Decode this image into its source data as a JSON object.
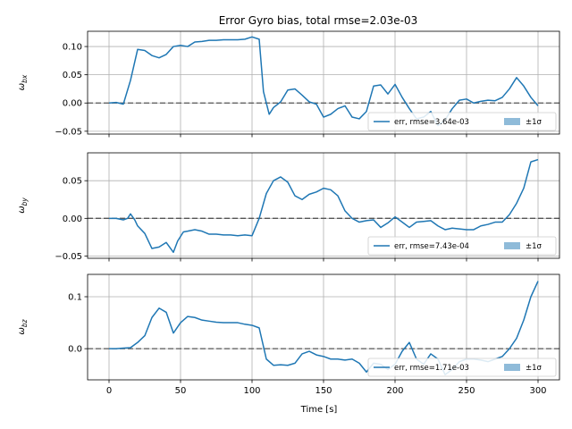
{
  "chart_data": {
    "type": "line",
    "title": "Error Gyro bias, total rmse=2.03e-03",
    "xlabel": "Time [s]",
    "xlim": [
      -15,
      315
    ],
    "xticks": [
      0,
      50,
      100,
      150,
      200,
      250,
      300
    ],
    "xtick_labels": [
      "0",
      "50",
      "100",
      "150",
      "200",
      "250",
      "300"
    ],
    "grid": true,
    "legend_placement": "lower right",
    "zero_reference": "dashed horizontal line at 0",
    "colors": {
      "series": "#1f77b4",
      "band": "#1f77b4",
      "zero_line": "#555555",
      "grid": "#b0b0b0"
    },
    "panels": [
      {
        "ylabel_base": "ω",
        "ylabel_sub": "bx",
        "ylim": [
          -0.055,
          0.127
        ],
        "yticks": [
          -0.05,
          0.0,
          0.05,
          0.1
        ],
        "ytick_labels": [
          "−0.05",
          "0.00",
          "0.05",
          "0.10"
        ],
        "legend": {
          "series_label": "err, rmse=3.64e-03",
          "band_label": "±1σ"
        },
        "series": [
          {
            "name": "err, rmse=3.64e-03",
            "x": [
              0,
              5,
              10,
              15,
              20,
              25,
              30,
              35,
              40,
              45,
              50,
              55,
              60,
              65,
              70,
              75,
              80,
              85,
              90,
              95,
              100,
              105,
              108,
              112,
              115,
              120,
              125,
              130,
              135,
              140,
              145,
              150,
              155,
              160,
              165,
              170,
              175,
              180,
              185,
              190,
              195,
              200,
              205,
              210,
              215,
              220,
              225,
              230,
              235,
              240,
              245,
              250,
              255,
              260,
              265,
              270,
              275,
              280,
              285,
              290,
              295,
              300
            ],
            "y": [
              0.0,
              0.001,
              -0.002,
              0.04,
              0.095,
              0.093,
              0.084,
              0.08,
              0.086,
              0.1,
              0.102,
              0.1,
              0.108,
              0.109,
              0.111,
              0.111,
              0.112,
              0.112,
              0.112,
              0.113,
              0.117,
              0.113,
              0.02,
              -0.02,
              -0.008,
              0.002,
              0.023,
              0.025,
              0.014,
              0.002,
              -0.002,
              -0.025,
              -0.02,
              -0.01,
              -0.005,
              -0.025,
              -0.028,
              -0.015,
              0.03,
              0.032,
              0.016,
              0.033,
              0.01,
              -0.01,
              -0.028,
              -0.025,
              -0.015,
              -0.04,
              -0.03,
              -0.01,
              0.005,
              0.007,
              0.0,
              0.003,
              0.005,
              0.004,
              0.01,
              0.025,
              0.045,
              0.03,
              0.01,
              -0.005
            ]
          }
        ]
      },
      {
        "ylabel_base": "ω",
        "ylabel_sub": "by",
        "ylim": [
          -0.053,
          0.087
        ],
        "yticks": [
          -0.05,
          0.0,
          0.05
        ],
        "ytick_labels": [
          "−0.05",
          "0.00",
          "0.05"
        ],
        "legend": {
          "series_label": "err, rmse=7.43e-04",
          "band_label": "±1σ"
        },
        "series": [
          {
            "name": "err, rmse=7.43e-04",
            "x": [
              0,
              5,
              10,
              13,
              15,
              18,
              20,
              25,
              30,
              35,
              40,
              45,
              48,
              52,
              55,
              60,
              65,
              70,
              75,
              80,
              85,
              90,
              95,
              100,
              105,
              110,
              115,
              120,
              125,
              130,
              135,
              140,
              145,
              150,
              155,
              160,
              165,
              170,
              175,
              180,
              185,
              190,
              195,
              200,
              205,
              210,
              215,
              220,
              225,
              230,
              235,
              240,
              245,
              250,
              255,
              260,
              265,
              270,
              275,
              280,
              285,
              290,
              295,
              300
            ],
            "y": [
              0.0,
              0.0,
              -0.002,
              0.0,
              0.006,
              -0.002,
              -0.01,
              -0.02,
              -0.04,
              -0.038,
              -0.032,
              -0.045,
              -0.03,
              -0.018,
              -0.017,
              -0.015,
              -0.017,
              -0.021,
              -0.021,
              -0.022,
              -0.022,
              -0.023,
              -0.022,
              -0.023,
              0.0,
              0.033,
              0.05,
              0.055,
              0.048,
              0.03,
              0.025,
              0.032,
              0.035,
              0.04,
              0.038,
              0.03,
              0.01,
              0.0,
              -0.005,
              -0.003,
              -0.002,
              -0.012,
              -0.006,
              0.002,
              -0.005,
              -0.012,
              -0.005,
              -0.004,
              -0.003,
              -0.01,
              -0.015,
              -0.013,
              -0.014,
              -0.015,
              -0.015,
              -0.01,
              -0.008,
              -0.005,
              -0.005,
              0.005,
              0.02,
              0.04,
              0.075,
              0.078
            ]
          }
        ]
      },
      {
        "ylabel_base": "ω",
        "ylabel_sub": "bz",
        "ylim": [
          -0.06,
          0.143
        ],
        "yticks": [
          0.0,
          0.1
        ],
        "ytick_labels": [
          "0.0",
          "0.1"
        ],
        "legend": {
          "series_label": "err, rmse=1.71e-03",
          "band_label": "±1σ"
        },
        "series": [
          {
            "name": "err, rmse=1.71e-03",
            "x": [
              0,
              5,
              10,
              15,
              20,
              25,
              30,
              35,
              40,
              45,
              50,
              55,
              60,
              65,
              70,
              75,
              80,
              85,
              90,
              95,
              100,
              105,
              110,
              115,
              120,
              125,
              130,
              135,
              140,
              145,
              150,
              155,
              160,
              165,
              170,
              175,
              180,
              185,
              190,
              195,
              200,
              205,
              210,
              215,
              220,
              225,
              230,
              235,
              240,
              245,
              250,
              255,
              260,
              265,
              270,
              275,
              280,
              285,
              290,
              295,
              300
            ],
            "y": [
              0.0,
              0.0,
              0.001,
              0.002,
              0.012,
              0.025,
              0.06,
              0.078,
              0.07,
              0.03,
              0.05,
              0.062,
              0.06,
              0.055,
              0.053,
              0.051,
              0.05,
              0.05,
              0.05,
              0.047,
              0.045,
              0.04,
              -0.02,
              -0.032,
              -0.031,
              -0.032,
              -0.028,
              -0.01,
              -0.005,
              -0.012,
              -0.015,
              -0.02,
              -0.02,
              -0.022,
              -0.02,
              -0.028,
              -0.045,
              -0.028,
              -0.03,
              -0.04,
              -0.03,
              -0.005,
              0.012,
              -0.02,
              -0.03,
              -0.01,
              -0.02,
              -0.05,
              -0.04,
              -0.025,
              -0.02,
              -0.02,
              -0.022,
              -0.025,
              -0.02,
              -0.015,
              0.0,
              0.02,
              0.055,
              0.1,
              0.13
            ]
          }
        ]
      }
    ]
  }
}
